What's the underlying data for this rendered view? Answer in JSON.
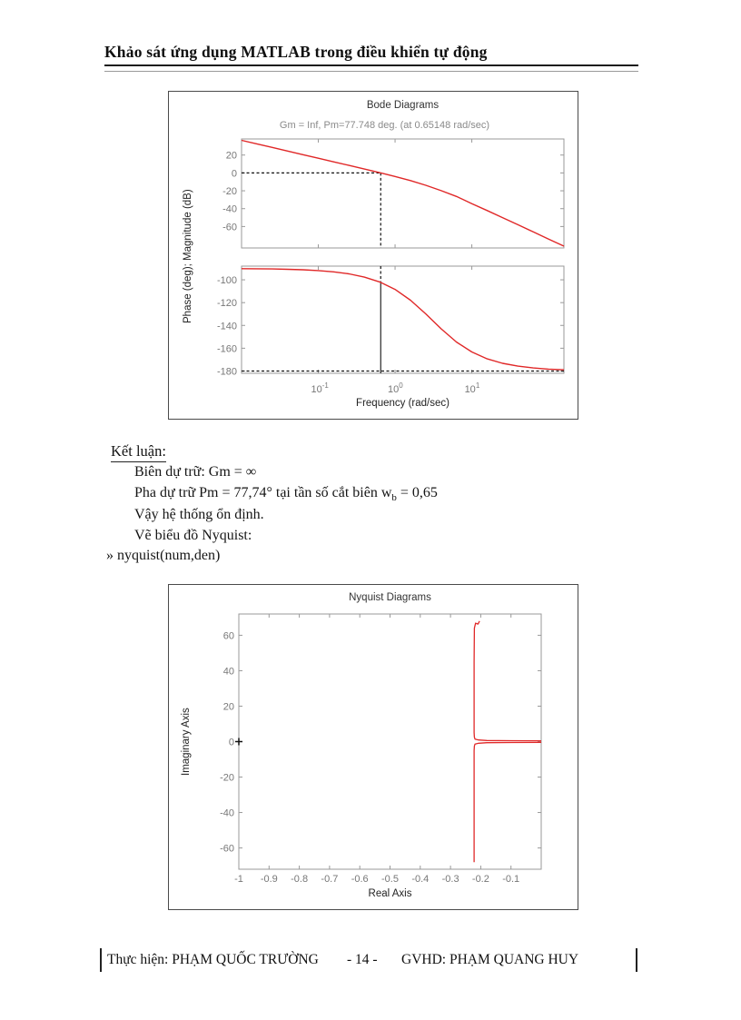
{
  "page": {
    "header": "Khảo sát ứng dụng MATLAB trong điều khiển tự động",
    "footer": {
      "author": "Thực hiện: PHẠM QUỐC TRƯỜNG",
      "page_number": "- 14 -",
      "advisor": "GVHD: PHẠM QUANG HUY"
    }
  },
  "conclusion": {
    "heading": "Kết luận:",
    "line_bien": "Biên dự trữ: Gm = ∞",
    "line_pha_pre": "Pha dự trữ Pm = 77,74° tại tần số cắt biên w",
    "line_pha_sub": "b",
    "line_pha_post": " = 0,65",
    "line_vay": "Vậy hệ thống ổn định.",
    "line_ve": "Vẽ biểu đồ Nyquist:",
    "command": "» nyquist(num,den)"
  },
  "chart_data": [
    {
      "type": "line",
      "name": "bode",
      "title": "Bode Diagrams",
      "subtitle": "Gm = Inf, Pm=77.748 deg. (at 0.65148 rad/sec)",
      "xlabel": "Frequency (rad/sec)",
      "ylabel": "Phase (deg); Magnitude (dB)",
      "x_scale": "log10",
      "xlim_log10": [
        -2,
        2.2
      ],
      "xticks": [
        {
          "log10": -1,
          "base": "10",
          "exp": "-1"
        },
        {
          "log10": 0,
          "base": "10",
          "exp": "0"
        },
        {
          "log10": 1,
          "base": "10",
          "exp": "1"
        }
      ],
      "line_color": "#e02828",
      "crossover_log10w": -0.187,
      "crossover_rad_sec": 0.65148,
      "phase_margin_deg": 77.748,
      "gain_margin": "Inf",
      "subplots": [
        {
          "name": "magnitude",
          "ylim": [
            -84,
            38
          ],
          "yticks": [
            20,
            0,
            -20,
            -40,
            -60
          ],
          "series": [
            {
              "name": "magnitude-dB",
              "points": [
                [
                  -2,
                  36.5
                ],
                [
                  -1.8,
                  32.5
                ],
                [
                  -1.6,
                  28.5
                ],
                [
                  -1.4,
                  24.5
                ],
                [
                  -1.2,
                  20.4
                ],
                [
                  -1,
                  16.4
                ],
                [
                  -0.8,
                  12.4
                ],
                [
                  -0.6,
                  8.4
                ],
                [
                  -0.4,
                  4.3
                ],
                [
                  -0.2,
                  0.3
                ],
                [
                  0,
                  -4.0
                ],
                [
                  0.2,
                  -8.6
                ],
                [
                  0.4,
                  -13.9
                ],
                [
                  0.6,
                  -19.8
                ],
                [
                  0.8,
                  -26.4
                ],
                [
                  1,
                  -34.4
                ],
                [
                  1.2,
                  -42.1
                ],
                [
                  1.4,
                  -50.0
                ],
                [
                  1.6,
                  -58.0
                ],
                [
                  1.8,
                  -66.0
                ],
                [
                  2,
                  -74.0
                ],
                [
                  2.2,
                  -82.0
                ]
              ]
            }
          ],
          "dashed": [
            {
              "dir": "h",
              "y": 0,
              "x1": -2,
              "x2": -0.187
            },
            {
              "dir": "v",
              "x": -0.187,
              "y1": 0,
              "y2": -84
            }
          ],
          "solid": []
        },
        {
          "name": "phase",
          "ylim": [
            -182,
            -88
          ],
          "yticks": [
            -100,
            -120,
            -140,
            -160,
            -180
          ],
          "series": [
            {
              "name": "phase-deg",
              "points": [
                [
                  -2,
                  -90.2
                ],
                [
                  -1.8,
                  -90.3
                ],
                [
                  -1.6,
                  -90.5
                ],
                [
                  -1.4,
                  -90.8
                ],
                [
                  -1.2,
                  -91.2
                ],
                [
                  -1,
                  -91.9
                ],
                [
                  -0.8,
                  -93.0
                ],
                [
                  -0.6,
                  -94.8
                ],
                [
                  -0.4,
                  -97.6
                ],
                [
                  -0.2,
                  -101.9
                ],
                [
                  0,
                  -108.4
                ],
                [
                  0.2,
                  -117.9
                ],
                [
                  0.4,
                  -129.9
                ],
                [
                  0.6,
                  -143.0
                ],
                [
                  0.8,
                  -154.6
                ],
                [
                  1,
                  -163.3
                ],
                [
                  1.2,
                  -169.3
                ],
                [
                  1.4,
                  -173.2
                ],
                [
                  1.6,
                  -175.7
                ],
                [
                  1.8,
                  -177.3
                ],
                [
                  2,
                  -178.3
                ],
                [
                  2.2,
                  -178.9
                ]
              ]
            }
          ],
          "dashed": [
            {
              "dir": "h",
              "y": -180,
              "x1": -2,
              "x2": 2.2
            },
            {
              "dir": "v",
              "x": -0.187,
              "y1": -88,
              "y2": -102.2
            }
          ],
          "solid": [
            {
              "dir": "v",
              "x": -0.187,
              "y1": -102.2,
              "y2": -182
            }
          ]
        }
      ]
    },
    {
      "type": "line",
      "name": "nyquist",
      "title": "Nyquist Diagrams",
      "xlabel": "Real Axis",
      "ylabel": "Imaginary Axis",
      "xlim": [
        -1,
        0
      ],
      "ylim": [
        -72,
        72
      ],
      "xticks": [
        -1,
        -0.9,
        -0.8,
        -0.7,
        -0.6,
        -0.5,
        -0.4,
        -0.3,
        -0.2,
        -0.1
      ],
      "yticks": [
        60,
        40,
        20,
        0,
        -20,
        -40,
        -60
      ],
      "line_color": "#e02828",
      "critical_marker": {
        "x": -1,
        "y": 0,
        "label": "+"
      },
      "series": [
        {
          "name": "upper-branch",
          "points": [
            [
              -0.204,
              68
            ],
            [
              -0.209,
              66.3
            ],
            [
              -0.217,
              66.8
            ],
            [
              -0.221,
              64
            ],
            [
              -0.222,
              45
            ],
            [
              -0.222,
              12
            ],
            [
              -0.2218,
              5
            ],
            [
              -0.2211,
              2.5
            ],
            [
              -0.219,
              1.4
            ],
            [
              -0.207,
              0.9
            ],
            [
              -0.18,
              0.6
            ],
            [
              -0.1,
              0.5
            ],
            [
              0,
              0.45
            ]
          ]
        },
        {
          "name": "lower-branch",
          "points": [
            [
              0,
              -0.45
            ],
            [
              -0.1,
              -0.5
            ],
            [
              -0.18,
              -0.6
            ],
            [
              -0.207,
              -0.9
            ],
            [
              -0.219,
              -1.4
            ],
            [
              -0.2211,
              -2.5
            ],
            [
              -0.2218,
              -5
            ],
            [
              -0.222,
              -12
            ],
            [
              -0.222,
              -45
            ],
            [
              -0.222,
              -68
            ]
          ]
        }
      ]
    }
  ]
}
